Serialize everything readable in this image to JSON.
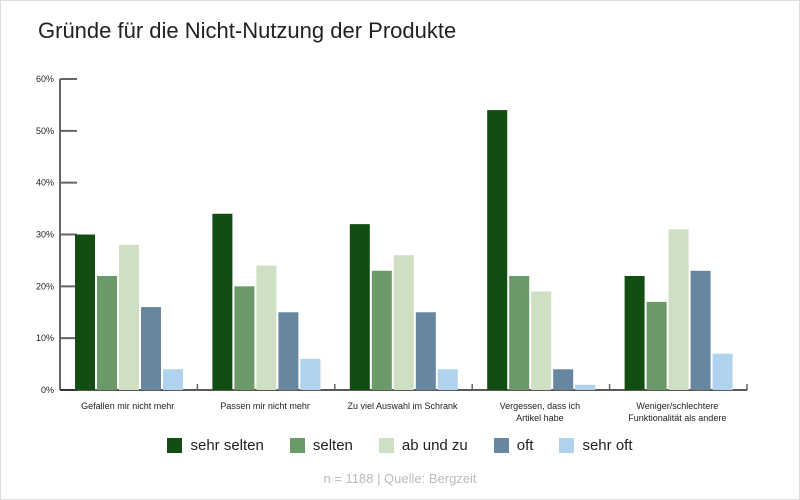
{
  "chart_data": {
    "type": "bar",
    "title": "Gründe für die Nicht-Nutzung der Produkte",
    "categories": [
      [
        "Gefallen mir nicht mehr"
      ],
      [
        "Passen mir nicht mehr"
      ],
      [
        "Zu viel Auswahl im Schrank"
      ],
      [
        "Vergessen, dass ich",
        "Artikel habe"
      ],
      [
        "Weniger/schlechtere",
        "Funktionalität als andere"
      ]
    ],
    "series": [
      {
        "name": "sehr selten",
        "color": "#124d12",
        "values": [
          30,
          34,
          32,
          54,
          22
        ]
      },
      {
        "name": "selten",
        "color": "#6b9a68",
        "values": [
          22,
          20,
          23,
          22,
          17
        ]
      },
      {
        "name": "ab und zu",
        "color": "#cfdfc3",
        "values": [
          28,
          24,
          26,
          19,
          31
        ]
      },
      {
        "name": "oft",
        "color": "#67869f",
        "values": [
          16,
          15,
          15,
          4,
          23
        ]
      },
      {
        "name": "sehr oft",
        "color": "#b1d2ee",
        "values": [
          4,
          6,
          4,
          1,
          7
        ]
      }
    ],
    "ylim": [
      0,
      60
    ],
    "yticks": [
      "0%",
      "10%",
      "20%",
      "30%",
      "40%",
      "50%",
      "60%"
    ],
    "grid": false,
    "legend": "bottom",
    "note": "n = 1188 | Quelle: Bergzeit"
  }
}
